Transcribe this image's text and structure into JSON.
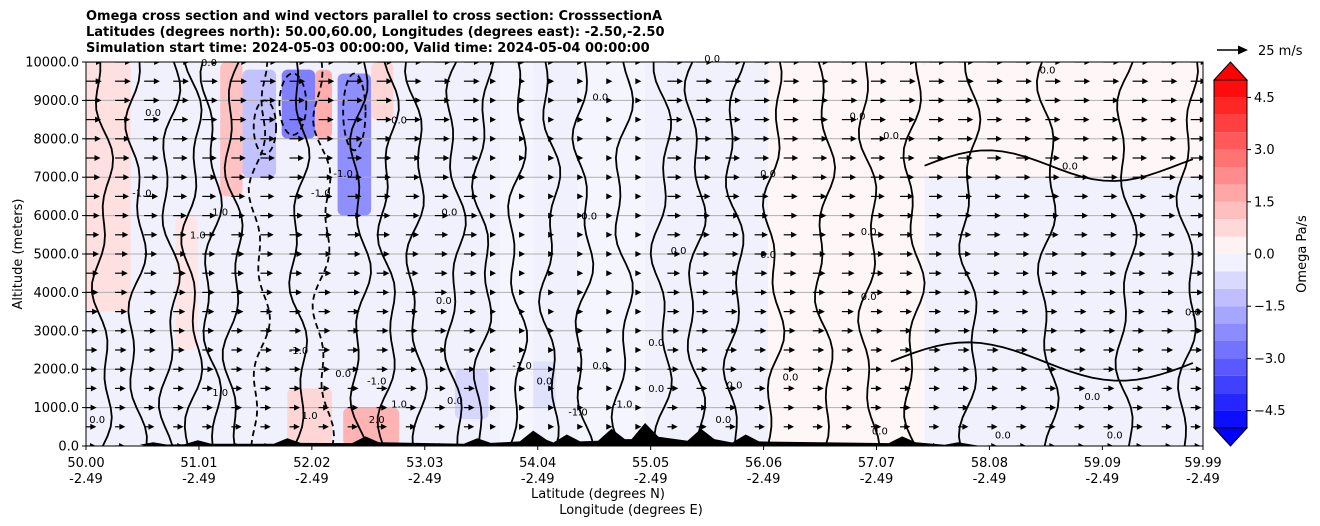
{
  "title_lines": [
    "Omega cross section and wind vectors parallel to cross section: CrosssectionA",
    "Latitudes (degrees north): 50.00,60.00, Longitudes (degrees east): -2.50,-2.50",
    "Simulation start time: 2024-05-03 00:00:00, Valid time: 2024-05-04 00:00:00"
  ],
  "chart_data": {
    "type": "heatmap",
    "subtype": "filled contour cross-section with line contours and wind quiver",
    "ylabel": "Altitude (meters)",
    "xlabel_lines": [
      "Latitude (degrees N)",
      "Longitude (degrees E)"
    ],
    "ylim": [
      0,
      10000
    ],
    "y_ticks": [
      "0.0",
      "1000.0",
      "2000.0",
      "3000.0",
      "4000.0",
      "5000.0",
      "6000.0",
      "7000.0",
      "8000.0",
      "9000.0",
      "10000.0"
    ],
    "y_tick_values": [
      0,
      1000,
      2000,
      3000,
      4000,
      5000,
      6000,
      7000,
      8000,
      9000,
      10000
    ],
    "xlim": [
      50.0,
      59.99
    ],
    "x_ticks": [
      {
        "value": 50.0,
        "lat": "50.00",
        "lon": "-2.49"
      },
      {
        "value": 51.01,
        "lat": "51.01",
        "lon": "-2.49"
      },
      {
        "value": 52.02,
        "lat": "52.02",
        "lon": "-2.49"
      },
      {
        "value": 53.03,
        "lat": "53.03",
        "lon": "-2.49"
      },
      {
        "value": 54.04,
        "lat": "54.04",
        "lon": "-2.49"
      },
      {
        "value": 55.05,
        "lat": "55.05",
        "lon": "-2.49"
      },
      {
        "value": 56.06,
        "lat": "56.06",
        "lon": "-2.49"
      },
      {
        "value": 57.07,
        "lat": "57.07",
        "lon": "-2.49"
      },
      {
        "value": 58.08,
        "lat": "58.08",
        "lon": "-2.49"
      },
      {
        "value": 59.09,
        "lat": "59.09",
        "lon": "-2.49"
      },
      {
        "value": 59.99,
        "lat": "59.99",
        "lon": "-2.49"
      }
    ],
    "grid": "horizontal",
    "colorbar": {
      "label": "Omega Pa/s",
      "range": [
        -5.0,
        5.0
      ],
      "ticks": [
        "4.5",
        "3.0",
        "1.5",
        "0.0",
        "−1.5",
        "−3.0",
        "−4.5"
      ],
      "tick_values": [
        4.5,
        3.0,
        1.5,
        0.0,
        -1.5,
        -3.0,
        -4.5
      ],
      "extend": "both",
      "low_color": "#0000ff",
      "high_color": "#ff0000",
      "mid_color": "#ffffff"
    },
    "quiver_key": {
      "label": "25 m/s",
      "speed": 25
    },
    "omega_regions": [
      {
        "lat": [
          50.0,
          50.4
        ],
        "alt": [
          3500,
          10000
        ],
        "omega": 0.6
      },
      {
        "lat": [
          50.8,
          51.0
        ],
        "alt": [
          2500,
          6000
        ],
        "omega": 0.5
      },
      {
        "lat": [
          51.2,
          51.4
        ],
        "alt": [
          6500,
          10000
        ],
        "omega": 1.2
      },
      {
        "lat": [
          51.4,
          51.7
        ],
        "alt": [
          7000,
          9800
        ],
        "omega": -1.2
      },
      {
        "lat": [
          51.75,
          52.05
        ],
        "alt": [
          8000,
          9800
        ],
        "omega": -2.5
      },
      {
        "lat": [
          52.05,
          52.2
        ],
        "alt": [
          8000,
          9800
        ],
        "omega": 1.6
      },
      {
        "lat": [
          52.25,
          52.55
        ],
        "alt": [
          6000,
          9700
        ],
        "omega": -2.2
      },
      {
        "lat": [
          52.55,
          52.75
        ],
        "alt": [
          8500,
          10000
        ],
        "omega": 0.8
      },
      {
        "lat": [
          52.3,
          52.8
        ],
        "alt": [
          0,
          1000
        ],
        "omega": 1.5
      },
      {
        "lat": [
          51.8,
          52.2
        ],
        "alt": [
          0,
          1500
        ],
        "omega": 0.8
      },
      {
        "lat": [
          53.3,
          53.6
        ],
        "alt": [
          700,
          2000
        ],
        "omega": -0.8
      },
      {
        "lat": [
          53.9,
          54.2
        ],
        "alt": [
          1000,
          2200
        ],
        "omega": -0.6
      },
      {
        "lat": [
          53.7,
          54.0
        ],
        "alt": [
          0,
          10000
        ],
        "omega": -0.2
      },
      {
        "lat": [
          54.4,
          55.0
        ],
        "alt": [
          0,
          10000
        ],
        "omega": -0.2
      },
      {
        "lat": [
          56.1,
          57.5
        ],
        "alt": [
          0,
          10000
        ],
        "omega": 0.15
      },
      {
        "lat": [
          57.5,
          59.99
        ],
        "alt": [
          7000,
          10000
        ],
        "omega": 0.15
      }
    ],
    "contour_labels": [
      {
        "text": "-1.0",
        "lat": 52.1,
        "alt": 6500
      },
      {
        "text": "1.0",
        "lat": 51.2,
        "alt": 6000
      },
      {
        "text": "-1.0",
        "lat": 52.3,
        "alt": 7000
      },
      {
        "text": "0.0",
        "lat": 50.6,
        "alt": 8600
      },
      {
        "text": "0.0",
        "lat": 51.1,
        "alt": 9900
      },
      {
        "text": "0.0",
        "lat": 54.6,
        "alt": 9000
      },
      {
        "text": "0.0",
        "lat": 55.6,
        "alt": 10000
      },
      {
        "text": "0.0",
        "lat": 58.6,
        "alt": 9700
      },
      {
        "text": "0.0",
        "lat": 53.25,
        "alt": 6000
      },
      {
        "text": "0.0",
        "lat": 54.5,
        "alt": 5900
      },
      {
        "text": "0.0",
        "lat": 56.1,
        "alt": 7000
      },
      {
        "text": "0.0",
        "lat": 57.2,
        "alt": 8000
      },
      {
        "text": "0.0",
        "lat": 58.8,
        "alt": 7200
      },
      {
        "text": "0.0",
        "lat": 57.0,
        "alt": 5500
      },
      {
        "text": "0.0",
        "lat": 56.1,
        "alt": 4900
      },
      {
        "text": "0.0",
        "lat": 57.0,
        "alt": 3800
      },
      {
        "text": "0.0",
        "lat": 55.3,
        "alt": 5000
      },
      {
        "text": "0.0",
        "lat": 53.2,
        "alt": 3700
      },
      {
        "text": "0.0",
        "lat": 52.3,
        "alt": 1800
      },
      {
        "text": "-1.0",
        "lat": 51.9,
        "alt": 2400
      },
      {
        "text": "0.0",
        "lat": 55.1,
        "alt": 2600
      },
      {
        "text": "0.0",
        "lat": 55.8,
        "alt": 1500
      },
      {
        "text": "0.0",
        "lat": 56.3,
        "alt": 1700
      },
      {
        "text": "-1.0",
        "lat": 52.6,
        "alt": 1600
      },
      {
        "text": "0.0",
        "lat": 54.6,
        "alt": 2000
      },
      {
        "text": "-1.0",
        "lat": 54.8,
        "alt": 1000
      },
      {
        "text": "0.0",
        "lat": 55.1,
        "alt": 1400
      },
      {
        "text": "0.0",
        "lat": 54.1,
        "alt": 1600
      },
      {
        "text": "0.0",
        "lat": 53.3,
        "alt": 1100
      },
      {
        "text": "0.0",
        "lat": 59.0,
        "alt": 1200
      },
      {
        "text": "0.0",
        "lat": 58.2,
        "alt": 200
      },
      {
        "text": "0.0",
        "lat": 59.2,
        "alt": 200
      },
      {
        "text": "0.0",
        "lat": 50.1,
        "alt": 600
      },
      {
        "text": "1.0",
        "lat": 51.2,
        "alt": 1300
      },
      {
        "text": "2.0",
        "lat": 52.6,
        "alt": 600
      },
      {
        "text": "1.0",
        "lat": 52.8,
        "alt": 1000
      },
      {
        "text": "0.0",
        "lat": 57.1,
        "alt": 300
      },
      {
        "text": "0.0",
        "lat": 56.9,
        "alt": 8500
      },
      {
        "text": "0.0",
        "lat": 59.9,
        "alt": 3400
      },
      {
        "text": "-1.0",
        "lat": 50.5,
        "alt": 6500
      },
      {
        "text": "1.0",
        "lat": 51.0,
        "alt": 5400
      },
      {
        "text": "0.0",
        "lat": 52.8,
        "alt": 8400
      },
      {
        "text": "-1.0",
        "lat": 53.9,
        "alt": 2000
      },
      {
        "text": "-1.0",
        "lat": 54.4,
        "alt": 800
      },
      {
        "text": "0.0",
        "lat": 55.7,
        "alt": 600
      },
      {
        "text": "1.0",
        "lat": 52.0,
        "alt": 700
      }
    ],
    "terrain_peak_altitudes": [
      {
        "lat": 50.6,
        "alt": 100
      },
      {
        "lat": 51.0,
        "alt": 150
      },
      {
        "lat": 51.8,
        "alt": 200
      },
      {
        "lat": 52.5,
        "alt": 250
      },
      {
        "lat": 53.5,
        "alt": 200
      },
      {
        "lat": 54.0,
        "alt": 400
      },
      {
        "lat": 54.3,
        "alt": 300
      },
      {
        "lat": 54.7,
        "alt": 450
      },
      {
        "lat": 55.0,
        "alt": 600
      },
      {
        "lat": 55.5,
        "alt": 450
      },
      {
        "lat": 55.9,
        "alt": 300
      },
      {
        "lat": 57.3,
        "alt": 250
      },
      {
        "lat": 57.8,
        "alt": 100
      }
    ]
  }
}
